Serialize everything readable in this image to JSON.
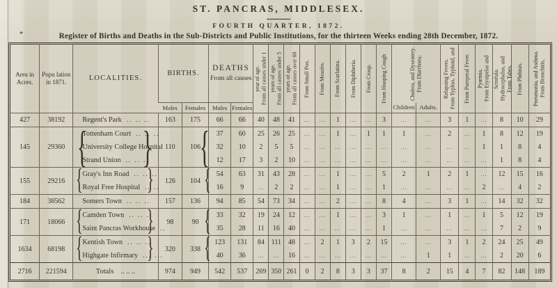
{
  "page": {
    "title": "ST. PANCRAS, MIDDLESEX.",
    "quarter": "FOURTH QUARTER, 1872.",
    "footnote_mark": "*",
    "subtitle": "Register of Births and Deaths in the Sub-Districts and Public Institutions, for the thirteen Weeks ending 28th December, 1872."
  },
  "glyphs": {
    "open_brace": "{",
    "close_brace": "}",
    "empty_cell": "..."
  },
  "table": {
    "headers": {
      "area": "Area in Acres.",
      "population": "Popu lation in 1871.",
      "localities": "LOCALITIES.",
      "births": "BIRTHS.",
      "deaths_line1": "DEATHS",
      "deaths_line2": "From all causes",
      "births_sub": [
        "Males",
        "Females"
      ],
      "deaths_sub": [
        "Males",
        "Females"
      ],
      "diarrhoea_sub": [
        "Children",
        "Adults."
      ],
      "cause_columns": [
        "From all causes under 1 year of age.",
        "From all causes under 5 years of age.",
        "From all causes over 60 years of age.",
        "From Small Pox.",
        "From Measles.",
        "From Scarlatina.",
        "From Diphtheria.",
        "From Croup.",
        "From Hooping Cough",
        "From Diarrhoea, Cholera, and Dysentery.",
        "From Typhus, Typhoid, and Relapsing Fevers.",
        "From Puerperal Fever.",
        "From Erysipelas and Pyœmia.",
        "From Tabes, Hydrocephalus, and Scrofula.",
        "From Phthisis.",
        "From Bronchitis, Pneumonia, and Asthma."
      ]
    },
    "groups": [
      {
        "area": "427",
        "population": "38192",
        "births": {
          "males": "163",
          "females": "175"
        },
        "rows": [
          {
            "name": "Regent's Park",
            "leader": ".. .. ..",
            "deaths": {
              "males": "66",
              "females": "66"
            },
            "cells": [
              "40",
              "48",
              "41",
              "...",
              "...",
              "1",
              "...",
              "...",
              "3",
              "...",
              "...",
              "3",
              "1",
              "...",
              "8",
              "10",
              "29"
            ]
          }
        ]
      },
      {
        "area": "145",
        "population": "29360",
        "births": {
          "males": "110",
          "females": "106"
        },
        "rows": [
          {
            "name": "Tottenham Court",
            "leader": ".. .. ..",
            "deaths": {
              "males": "37",
              "females": "60"
            },
            "cells": [
              "25",
              "26",
              "25",
              "...",
              "...",
              "1",
              "...",
              "1",
              "1",
              "1",
              "...",
              "2",
              "...",
              "1",
              "8",
              "12",
              "19"
            ]
          },
          {
            "name": "University College Hospital",
            "leader": "",
            "deaths": {
              "males": "32",
              "females": "10"
            },
            "cells": [
              "2",
              "5",
              "5",
              "...",
              "...",
              "...",
              "...",
              "...",
              "...",
              "...",
              "...",
              "...",
              "...",
              "1",
              "1",
              "8",
              "4"
            ]
          },
          {
            "name": "Strand Union",
            "leader": ".. .. ..",
            "deaths": {
              "males": "12",
              "females": "17"
            },
            "cells": [
              "3",
              "2",
              "10",
              "...",
              "...",
              "...",
              "...",
              "...",
              "...",
              "...",
              "...",
              "...",
              "...",
              "...",
              "1",
              "8",
              "4"
            ]
          }
        ]
      },
      {
        "area": "155",
        "population": "29216",
        "births": {
          "males": "126",
          "females": "104"
        },
        "rows": [
          {
            "name": "Gray's Inn Road",
            "leader": ".. .. ..",
            "deaths": {
              "males": "54",
              "females": "63"
            },
            "cells": [
              "31",
              "43",
              "28",
              "...",
              "...",
              "1",
              "...",
              "...",
              "5",
              "2",
              "1",
              "2",
              "1",
              "...",
              "12",
              "15",
              "16"
            ]
          },
          {
            "name": "Royal Free Hospital",
            "leader": ".. ..",
            "deaths": {
              "males": "16",
              "females": "9"
            },
            "cells": [
              "...",
              "2",
              "2",
              "...",
              "...",
              "1",
              "...",
              "...",
              "1",
              "...",
              "...",
              "...",
              "...",
              "2",
              "...",
              "4",
              "2"
            ]
          }
        ]
      },
      {
        "area": "184",
        "population": "38562",
        "births": {
          "males": "157",
          "females": "136"
        },
        "rows": [
          {
            "name": "Somers Town",
            "leader": ".. .. ..",
            "deaths": {
              "males": "94",
              "females": "85"
            },
            "cells": [
              "54",
              "73",
              "34",
              "...",
              "...",
              "2",
              "...",
              "...",
              "8",
              "4",
              "...",
              "3",
              "1",
              "...",
              "14",
              "32",
              "32"
            ]
          }
        ]
      },
      {
        "area": "171",
        "population": "18066",
        "births": {
          "males": "98",
          "females": "90"
        },
        "rows": [
          {
            "name": "Camden Town",
            "leader": ".. .. ..",
            "deaths": {
              "males": "33",
              "females": "32"
            },
            "cells": [
              "19",
              "24",
              "12",
              "...",
              "...",
              "1",
              "...",
              "...",
              "3",
              "1",
              "...",
              "1",
              "...",
              "1",
              "5",
              "12",
              "19"
            ]
          },
          {
            "name": "Saint Pancras Workhouse",
            "leader": "..",
            "deaths": {
              "males": "35",
              "females": "28"
            },
            "cells": [
              "11",
              "16",
              "40",
              "...",
              "...",
              "...",
              "...",
              "...",
              "1",
              "...",
              "...",
              "...",
              "...",
              "...",
              "7",
              "2",
              "9"
            ]
          }
        ]
      },
      {
        "area": "1634",
        "population": "68198",
        "births": {
          "males": "320",
          "females": "338"
        },
        "rows": [
          {
            "name": "Kentish Town",
            "leader": ".. .. ..",
            "deaths": {
              "males": "123",
              "females": "131"
            },
            "cells": [
              "84",
              "111",
              "48",
              "...",
              "2",
              "1",
              "3",
              "2",
              "15",
              "...",
              "...",
              "3",
              "1",
              "2",
              "24",
              "25",
              "49"
            ]
          },
          {
            "name": "Highgate Infirmary",
            "leader": "... ...",
            "deaths": {
              "males": "40",
              "females": "36"
            },
            "cells": [
              "...",
              "...",
              "16",
              "...",
              "...",
              "...",
              "...",
              "...",
              "...",
              "...",
              "1",
              "1",
              "...",
              "...",
              "2",
              "20",
              "6"
            ]
          }
        ]
      }
    ],
    "totals": {
      "area": "2716",
      "population": "221594",
      "label": "Totals",
      "leader": ".. .. ..",
      "births": {
        "males": "974",
        "females": "949"
      },
      "deaths": {
        "males": "542",
        "females": "537"
      },
      "cells": [
        "269",
        "350",
        "261",
        "0",
        "2",
        "8",
        "3",
        "3",
        "37",
        "8",
        "2",
        "15",
        "4",
        "7",
        "82",
        "148",
        "189"
      ]
    }
  }
}
